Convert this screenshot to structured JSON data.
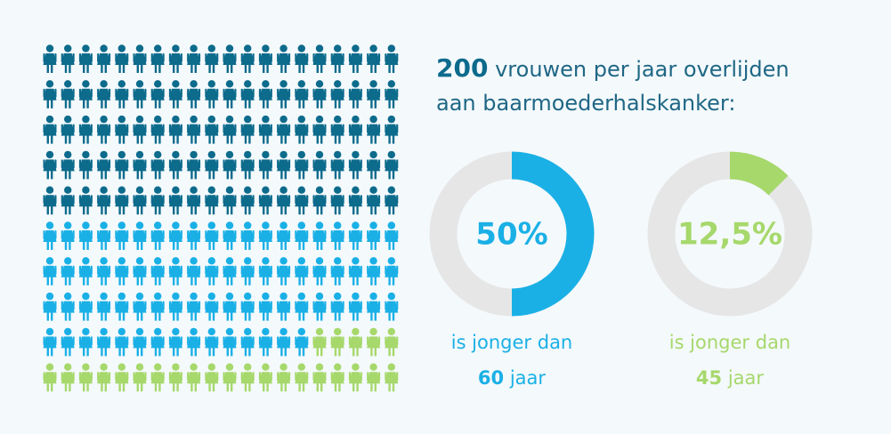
{
  "chart_data": [
    {
      "type": "pictogram",
      "title_number": 200,
      "title": "vrouwen per jaar overlijden aan baarmoederhalskanker:",
      "values": [
        100,
        75,
        25
      ],
      "colors": [
        "#0d6b8c",
        "#1ab0e6",
        "#a6d86b"
      ]
    },
    {
      "type": "donut",
      "values": [
        50
      ],
      "value_labels": [
        "50%"
      ],
      "color": "#1ab0e6",
      "track_color": "#e6e6e6",
      "caption": "is jonger dan",
      "age": 60,
      "unit": "jaar"
    },
    {
      "type": "donut",
      "values": [
        12.5
      ],
      "value_labels": [
        "12,5%"
      ],
      "color": "#a6d86b",
      "track_color": "#e6e6e6",
      "caption": "is jonger dan",
      "age": 45,
      "unit": "jaar"
    }
  ]
}
